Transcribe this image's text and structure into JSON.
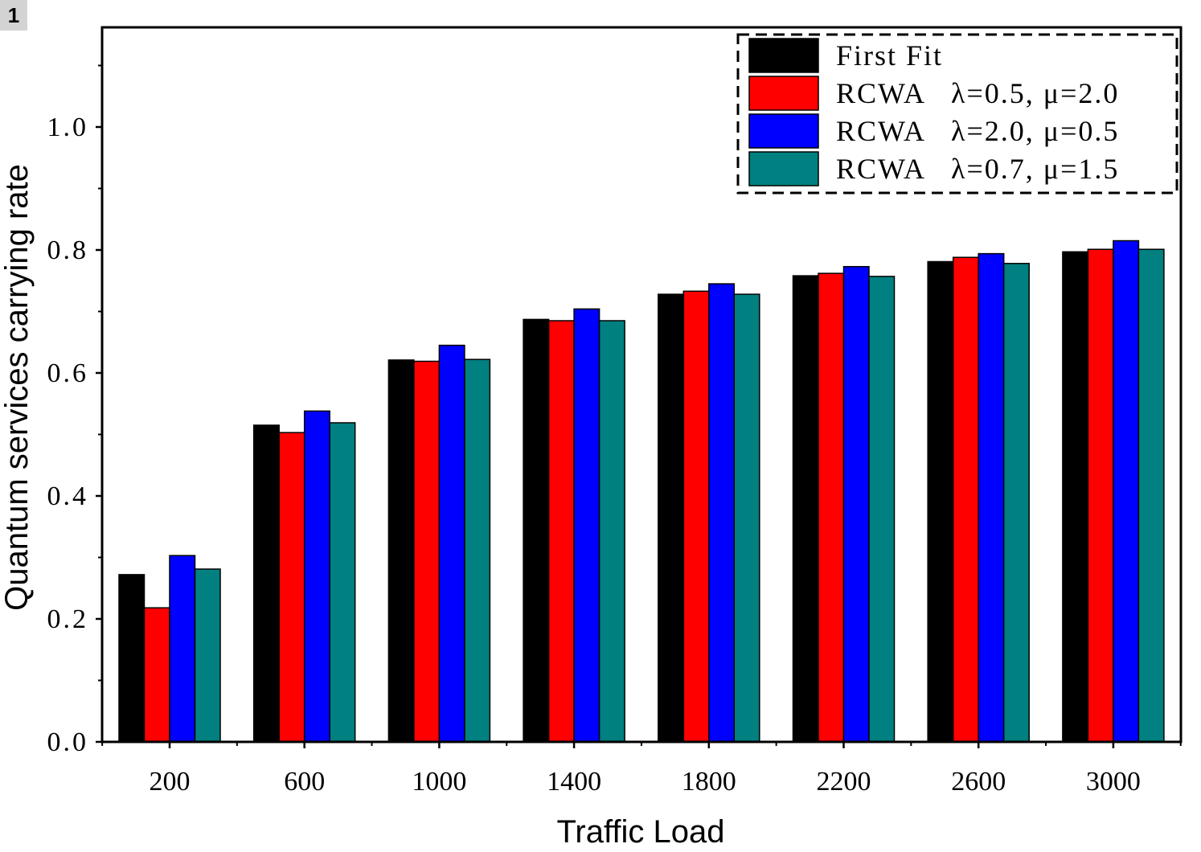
{
  "panel_label": "1",
  "chart_data": {
    "type": "bar",
    "xlabel": "Traffic Load",
    "ylabel": "Quantum services carrying rate",
    "categories": [
      "200",
      "600",
      "1000",
      "1400",
      "1800",
      "2200",
      "2600",
      "3000"
    ],
    "ylim": [
      0,
      1.16
    ],
    "yticks": [
      0.0,
      0.2,
      0.4,
      0.6,
      0.8,
      1.0
    ],
    "ytick_labels": [
      "0.0",
      "0.2",
      "0.4",
      "0.6",
      "0.8",
      "1.0"
    ],
    "grid": false,
    "legend_position": "top-right",
    "series": [
      {
        "name": "First Fit",
        "color": "#000000",
        "values": [
          0.272,
          0.515,
          0.621,
          0.687,
          0.728,
          0.758,
          0.781,
          0.797
        ]
      },
      {
        "name": "RCWA   λ=0.5, μ=2.0",
        "color": "#ff0000",
        "values": [
          0.218,
          0.503,
          0.619,
          0.685,
          0.733,
          0.762,
          0.788,
          0.801
        ]
      },
      {
        "name": "RCWA   λ=2.0, μ=0.5",
        "color": "#0000ff",
        "values": [
          0.303,
          0.538,
          0.645,
          0.704,
          0.745,
          0.773,
          0.794,
          0.815
        ]
      },
      {
        "name": "RCWA   λ=0.7, μ=1.5",
        "color": "#008080",
        "values": [
          0.281,
          0.519,
          0.622,
          0.685,
          0.728,
          0.757,
          0.778,
          0.801
        ]
      }
    ]
  }
}
